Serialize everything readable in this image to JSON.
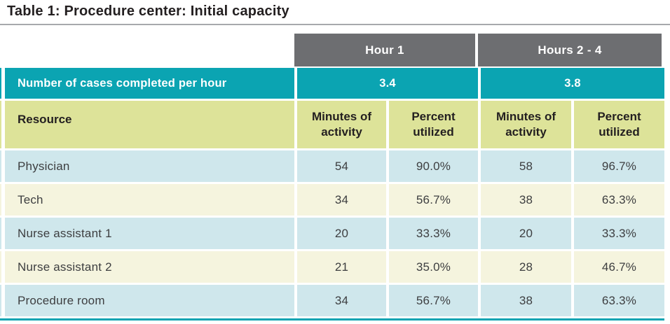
{
  "title": "Table 1: Procedure center: Initial capacity",
  "colors": {
    "teal": "#0ba4b2",
    "header_gray": "#6d6e71",
    "yellow_green": "#dde399",
    "light_blue": "#cfe7ec",
    "cream": "#f5f4de",
    "rule_gray": "#a7a9ac",
    "title_text": "#231f20"
  },
  "chart_data": {
    "type": "table",
    "title": "Table 1: Procedure center: Initial capacity",
    "column_groups": [
      {
        "label": "Hour 1"
      },
      {
        "label": "Hours 2 - 4"
      }
    ],
    "cases_row": {
      "label": "Number of cases completed per hour",
      "values": [
        "3.4",
        "3.8"
      ]
    },
    "header": {
      "resource": "Resource",
      "sub_columns": [
        "Minutes of activity",
        "Percent utilized",
        "Minutes of activity",
        "Percent utilized"
      ]
    },
    "rows": [
      {
        "resource": "Physician",
        "values": [
          "54",
          "90.0%",
          "58",
          "96.7%"
        ]
      },
      {
        "resource": "Tech",
        "values": [
          "34",
          "56.7%",
          "38",
          "63.3%"
        ]
      },
      {
        "resource": "Nurse assistant 1",
        "values": [
          "20",
          "33.3%",
          "20",
          "33.3%"
        ]
      },
      {
        "resource": "Nurse assistant 2",
        "values": [
          "21",
          "35.0%",
          "28",
          "46.7%"
        ]
      },
      {
        "resource": "Procedure room",
        "values": [
          "34",
          "56.7%",
          "38",
          "63.3%"
        ]
      }
    ]
  }
}
